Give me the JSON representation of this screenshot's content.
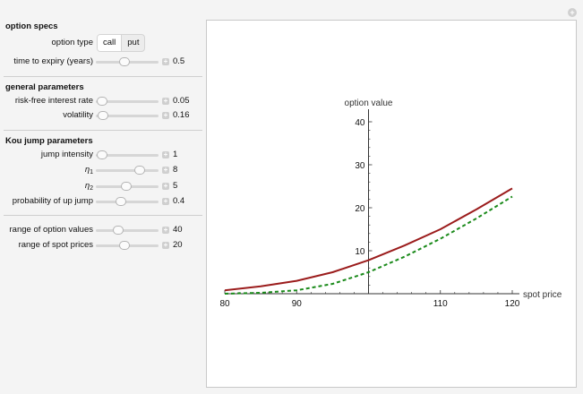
{
  "panel": {
    "option_specs_title": "option specs",
    "option_type_label": "option type",
    "option_type_call": "call",
    "option_type_put": "put",
    "option_type_selected": "call",
    "expiry_label": "time to expiry (years)",
    "expiry_value": "0.5",
    "expiry_fraction": 0.45,
    "general_title": "general parameters",
    "rate_label": "risk-free interest rate",
    "rate_value": "0.05",
    "rate_fraction": 0.1,
    "vol_label": "volatility",
    "vol_value": "0.16",
    "vol_fraction": 0.12,
    "kou_title": "Kou jump parameters",
    "intensity_label": "jump intensity",
    "intensity_value": "1",
    "intensity_fraction": 0.1,
    "eta1_symbol": "η",
    "eta1_sub": "1",
    "eta1_value": "8",
    "eta1_fraction": 0.7,
    "eta2_symbol": "η",
    "eta2_sub": "2",
    "eta2_value": "5",
    "eta2_fraction": 0.48,
    "prob_label": "probability of up jump",
    "prob_value": "0.4",
    "prob_fraction": 0.4,
    "range_values_label": "range of option values",
    "range_values_value": "40",
    "range_values_fraction": 0.35,
    "range_spot_label": "range of spot prices",
    "range_spot_value": "20",
    "range_spot_fraction": 0.45
  },
  "colors": {
    "jump_curve": "#9b1c1c",
    "bs_curve": "#1a8a1a",
    "axis": "#333333"
  },
  "chart_data": {
    "type": "line",
    "xlabel": "spot price",
    "ylabel": "option value",
    "xlim": [
      80,
      120
    ],
    "ylim": [
      0,
      40
    ],
    "xticks": [
      80,
      90,
      110,
      120
    ],
    "yticks": [
      10,
      20,
      30,
      40
    ],
    "axis_origin_x": 100,
    "grid": false,
    "series": [
      {
        "style": "solid",
        "color": "#9b1c1c",
        "x": [
          80,
          85,
          90,
          95,
          100,
          105,
          110,
          115,
          120
        ],
        "y": [
          0.8,
          1.7,
          3.0,
          5.0,
          7.8,
          11.2,
          15.0,
          19.6,
          24.5
        ]
      },
      {
        "style": "dashed",
        "color": "#1a8a1a",
        "x": [
          80,
          85,
          90,
          95,
          100,
          105,
          110,
          115,
          120
        ],
        "y": [
          0.0,
          0.2,
          0.8,
          2.3,
          5.0,
          8.6,
          12.8,
          17.5,
          22.6
        ]
      }
    ]
  }
}
